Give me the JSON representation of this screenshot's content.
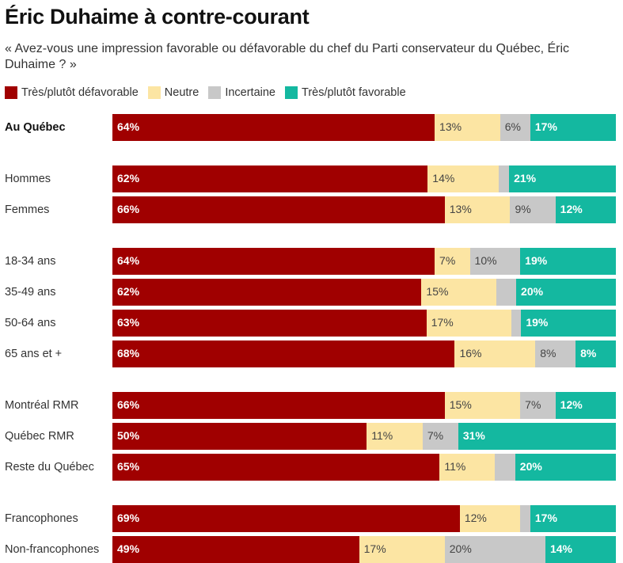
{
  "title": "Éric Duhaime à contre-courant",
  "subtitle": "« Avez-vous une impression favorable ou défavorable du chef du Parti conservateur du Québec, Éric Duhaime ? »",
  "chart_data": {
    "type": "bar",
    "orientation": "horizontal",
    "stacked": true,
    "normalized_to": 100,
    "legend_position": "top-left",
    "categories": [
      "Au Québec",
      "Hommes",
      "Femmes",
      "18-34 ans",
      "35-49 ans",
      "50-64 ans",
      "65 ans et +",
      "Montréal RMR",
      "Québec RMR",
      "Reste du Québec",
      "Francophones",
      "Non-francophones"
    ],
    "groups": [
      [
        0
      ],
      [
        1,
        2
      ],
      [
        3,
        4,
        5,
        6
      ],
      [
        7,
        8,
        9
      ],
      [
        10,
        11
      ]
    ],
    "bold_categories": [
      "Au Québec"
    ],
    "series": [
      {
        "name": "Très/plutôt défavorable",
        "color": "#a00000",
        "label_color": "#ffffff",
        "label_bold": true,
        "values": [
          64,
          62,
          66,
          64,
          62,
          63,
          68,
          66,
          50,
          65,
          69,
          49
        ],
        "labels": [
          "64%",
          "62%",
          "66%",
          "64%",
          "62%",
          "63%",
          "68%",
          "66%",
          "50%",
          "65%",
          "69%",
          "49%"
        ]
      },
      {
        "name": "Neutre",
        "color": "#fce5a3",
        "label_color": "#444444",
        "label_bold": false,
        "values": [
          13,
          14,
          13,
          7,
          15,
          17,
          16,
          15,
          11,
          11,
          12,
          17
        ],
        "labels": [
          "13%",
          "14%",
          "13%",
          "7%",
          "15%",
          "17%",
          "16%",
          "15%",
          "11%",
          "11%",
          "12%",
          "17%"
        ]
      },
      {
        "name": "Incertaine",
        "color": "#c8c8c8",
        "label_color": "#444444",
        "label_bold": false,
        "values": [
          6,
          2,
          9,
          10,
          4,
          2,
          8,
          7,
          7,
          4,
          2,
          20
        ],
        "labels": [
          "6%",
          "",
          "9%",
          "10%",
          "",
          "",
          "8%",
          "7%",
          "7%",
          "",
          "",
          "20%"
        ]
      },
      {
        "name": "Très/plutôt favorable",
        "color": "#14b8a0",
        "label_color": "#ffffff",
        "label_bold": true,
        "values": [
          17,
          21,
          12,
          19,
          20,
          19,
          8,
          12,
          31,
          20,
          17,
          14
        ],
        "labels": [
          "17%",
          "21%",
          "12%",
          "19%",
          "20%",
          "19%",
          "8%",
          "12%",
          "31%",
          "20%",
          "17%",
          "14%"
        ]
      }
    ]
  }
}
